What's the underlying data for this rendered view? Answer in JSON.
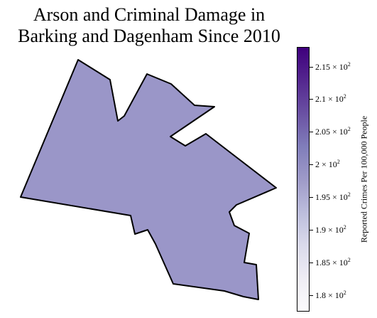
{
  "title": {
    "line1": "Arson and Criminal Damage in",
    "line2": "Barking and Dagenham Since 2010"
  },
  "map": {
    "region_value": 198,
    "region_fill": "#9a96c8",
    "border_color": "#000000"
  },
  "colorbar": {
    "label": "Reported Crimes Per 100,000 People",
    "min": 177.5,
    "max": 218,
    "colormap": "Purples",
    "colors": [
      "#fcfbfd",
      "#efedf5",
      "#dadaeb",
      "#bcbddc",
      "#9e9ac8",
      "#807dba",
      "#6a51a3",
      "#54278f",
      "#3f007d"
    ],
    "ticks": [
      {
        "value": 180,
        "mantissa": "1.8 × 10",
        "exponent": "2"
      },
      {
        "value": 185,
        "mantissa": "1.85 × 10",
        "exponent": "2"
      },
      {
        "value": 190,
        "mantissa": "1.9 × 10",
        "exponent": "2"
      },
      {
        "value": 195,
        "mantissa": "1.95 × 10",
        "exponent": "2"
      },
      {
        "value": 200,
        "mantissa": "2 × 10",
        "exponent": "2"
      },
      {
        "value": 205,
        "mantissa": "2.05 × 10",
        "exponent": "2"
      },
      {
        "value": 210,
        "mantissa": "2.1 × 10",
        "exponent": "2"
      },
      {
        "value": 215,
        "mantissa": "2.15 × 10",
        "exponent": "2"
      }
    ]
  }
}
